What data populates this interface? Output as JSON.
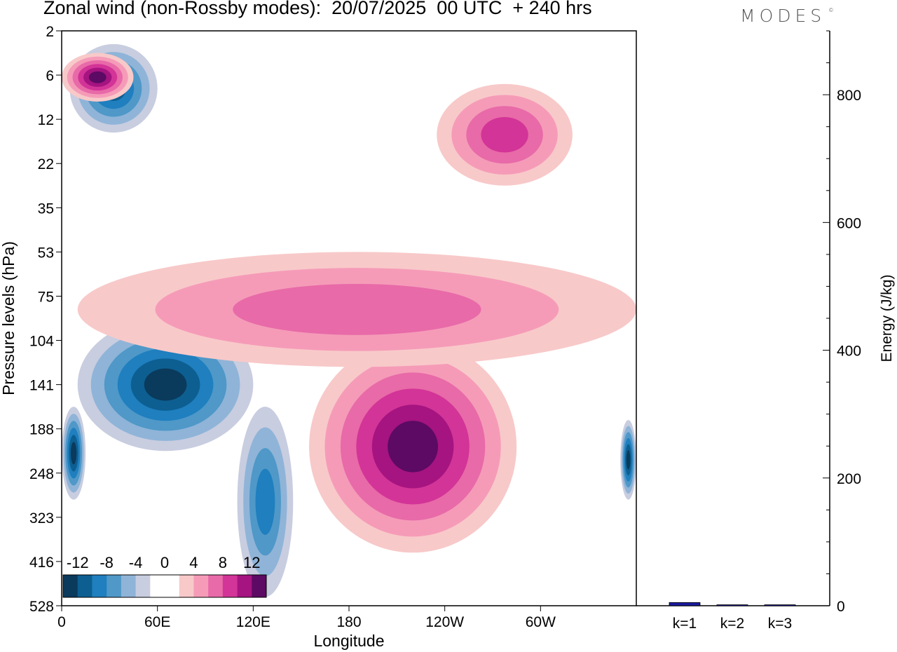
{
  "header": {
    "title": "Zonal wind (non-Rossby modes):  20/07/2025  00 UTC  + 240 hrs",
    "brand": "MODES",
    "brand_mark": "©"
  },
  "chart_data": [
    {
      "type": "heatmap",
      "title": "Zonal wind (non-Rossby modes):  20/07/2025  00 UTC  + 240 hrs",
      "xlabel": "Longitude",
      "ylabel": "Pressure levels (hPa)",
      "x_range_deg": [
        0,
        360
      ],
      "x_ticks": [
        {
          "deg": 0,
          "label": "0"
        },
        {
          "deg": 60,
          "label": "60E"
        },
        {
          "deg": 120,
          "label": "120E"
        },
        {
          "deg": 180,
          "label": "180"
        },
        {
          "deg": 240,
          "label": "120W"
        },
        {
          "deg": 300,
          "label": "60W"
        }
      ],
      "y_levels": [
        "2",
        "6",
        "12",
        "22",
        "35",
        "53",
        "75",
        "104",
        "141",
        "188",
        "248",
        "323",
        "416",
        "528"
      ],
      "colorbar": {
        "labels": [
          "-12",
          "-8",
          "-4",
          "0",
          "4",
          "8",
          "12"
        ],
        "colors": [
          "#0a3a5c",
          "#0d5f91",
          "#1f7fbf",
          "#4f98c8",
          "#8fb4d8",
          "#c8cde0",
          "#ffffff",
          "#ffffff",
          "#f8c9c9",
          "#f59bb8",
          "#e86aa8",
          "#d33497",
          "#a51480",
          "#5c0a63"
        ]
      },
      "features": [
        {
          "name": "neg-upper-band",
          "lon": [
            5,
            60
          ],
          "level_index": [
            0.3,
            2.3
          ],
          "min_value": -10
        },
        {
          "name": "pos-upper-band",
          "lon": [
            0,
            45
          ],
          "level_index": [
            0.5,
            1.6
          ],
          "max_value": 12
        },
        {
          "name": "neg-60E-core",
          "lon": [
            10,
            120
          ],
          "level_index": [
            6.5,
            9.5
          ],
          "min_value": -14
        },
        {
          "name": "neg-188-west-edge",
          "lon": [
            0,
            15
          ],
          "level_index": [
            8.5,
            10.6
          ],
          "min_value": -12
        },
        {
          "name": "neg-130E-column",
          "lon": [
            110,
            145
          ],
          "level_index": [
            8.5,
            12.8
          ],
          "min_value": -9
        },
        {
          "name": "pos-170-260-core",
          "lon": [
            155,
            285
          ],
          "level_index": [
            7,
            11.8
          ],
          "max_value": 14
        },
        {
          "name": "pos-75hPa-band",
          "lon": [
            10,
            360
          ],
          "level_index": [
            5,
            7.6
          ],
          "max_value": 7
        },
        {
          "name": "pos-upper-east",
          "lon": [
            235,
            320
          ],
          "level_index": [
            1.2,
            3.5
          ],
          "max_value": 8
        },
        {
          "name": "neg-east-edge-188",
          "lon": [
            350,
            360
          ],
          "level_index": [
            8.8,
            10.6
          ],
          "min_value": -12
        }
      ]
    },
    {
      "type": "bar",
      "ylabel": "Energy (J/kg)",
      "ylim": [
        0,
        900
      ],
      "y_ticks": [
        0,
        200,
        400,
        600,
        800
      ],
      "categories": [
        "k=1",
        "k=2",
        "k=3"
      ],
      "values": [
        5,
        1.5,
        1.5
      ],
      "bar_color": "#1a1a9c"
    }
  ]
}
